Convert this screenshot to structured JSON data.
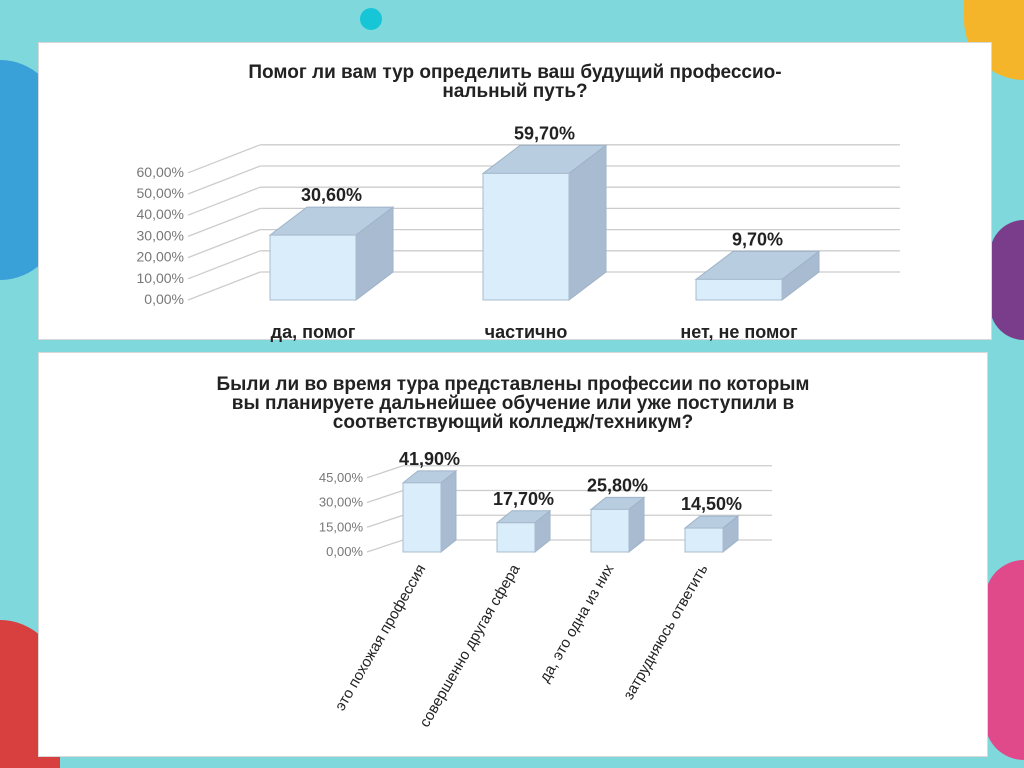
{
  "colors": {
    "bar_front": "#d9edfb",
    "bar_top": "#b8cde0",
    "bar_side": "#a8bbd0",
    "grid": "#cccccc"
  },
  "chart_data": [
    {
      "type": "bar",
      "title": "Помог ли вам тур определить ваш будущий профессио-нальный путь?",
      "title_lines": [
        "Помог ли вам тур определить ваш будущий профессио-",
        "нальный путь?"
      ],
      "categories": [
        "да, помог",
        "частично",
        "нет, не помог"
      ],
      "values": [
        30.6,
        59.7,
        9.7
      ],
      "data_labels": [
        "30,60%",
        "59,70%",
        "9,70%"
      ],
      "ytick_labels": [
        "0,00%",
        "10,00%",
        "20,00%",
        "30,00%",
        "40,00%",
        "50,00%",
        "60,00%"
      ],
      "ylim": [
        0,
        60
      ],
      "style": "3d-column"
    },
    {
      "type": "bar",
      "title": "Были ли во время тура представлены профессии по которым вы планируете дальнейшее обучение или уже поступили в соответствующий колледж/техникум?",
      "title_lines": [
        "Были ли во время тура представлены профессии по которым",
        "вы планируете дальнейшее обучение или уже поступили в",
        "соответствующий колледж/техникум?"
      ],
      "categories": [
        "это похожая профессия",
        "совершенно другая сфера",
        "да, это одна из них",
        "затрудняюсь ответить"
      ],
      "values": [
        41.9,
        17.7,
        25.8,
        14.5
      ],
      "data_labels": [
        "41,90%",
        "17,70%",
        "25,80%",
        "14,50%"
      ],
      "ytick_labels": [
        "0,00%",
        "15,00%",
        "30,00%",
        "45,00%"
      ],
      "ylim": [
        0,
        45
      ],
      "style": "3d-column"
    }
  ]
}
